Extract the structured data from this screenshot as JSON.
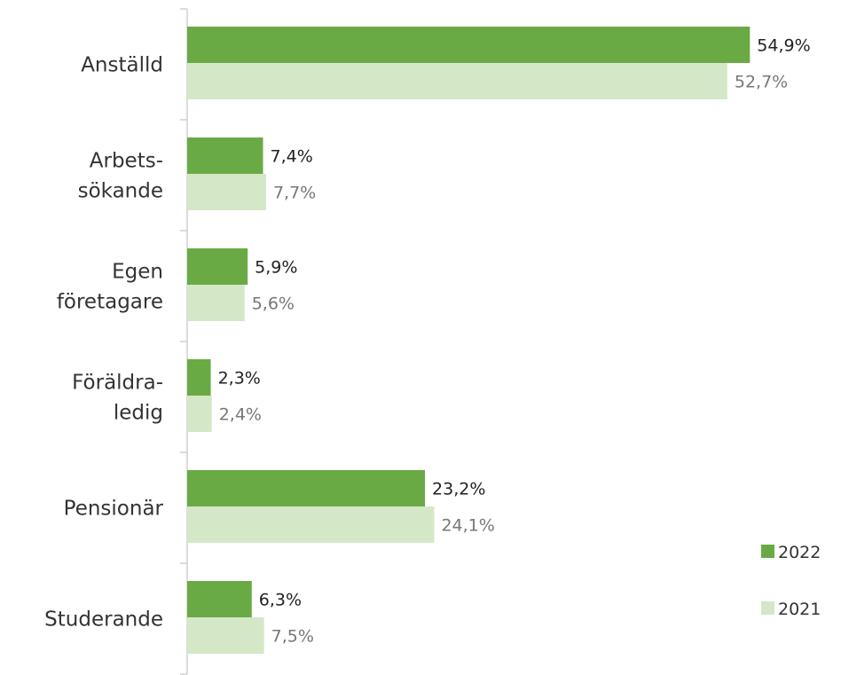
{
  "chart_data": {
    "type": "bar",
    "orientation": "horizontal",
    "categories": [
      [
        "Anställd"
      ],
      [
        "Arbets-",
        "sökande"
      ],
      [
        "Egen",
        "företagare"
      ],
      [
        "Föräldra-",
        "ledig"
      ],
      [
        "Pensionär"
      ],
      [
        "Studerande"
      ]
    ],
    "series": [
      {
        "name": "2022",
        "color": "#6aaa45",
        "label_color": "#222222",
        "values": [
          54.9,
          7.4,
          5.9,
          2.3,
          23.2,
          6.3
        ],
        "labels": [
          "54,9%",
          "7,4%",
          "5,9%",
          "2,3%",
          "23,2%",
          "6,3%"
        ]
      },
      {
        "name": "2021",
        "color": "#d4e8c8",
        "label_color": "#777777",
        "values": [
          52.7,
          7.7,
          5.6,
          2.4,
          24.1,
          7.5
        ],
        "labels": [
          "52,7%",
          "7,7%",
          "5,6%",
          "2,4%",
          "24,1%",
          "7,5%"
        ]
      }
    ],
    "xlim": [
      0,
      56
    ],
    "grid": false,
    "legend_position": "bottom-right",
    "title": "",
    "xlabel": "",
    "ylabel": ""
  }
}
